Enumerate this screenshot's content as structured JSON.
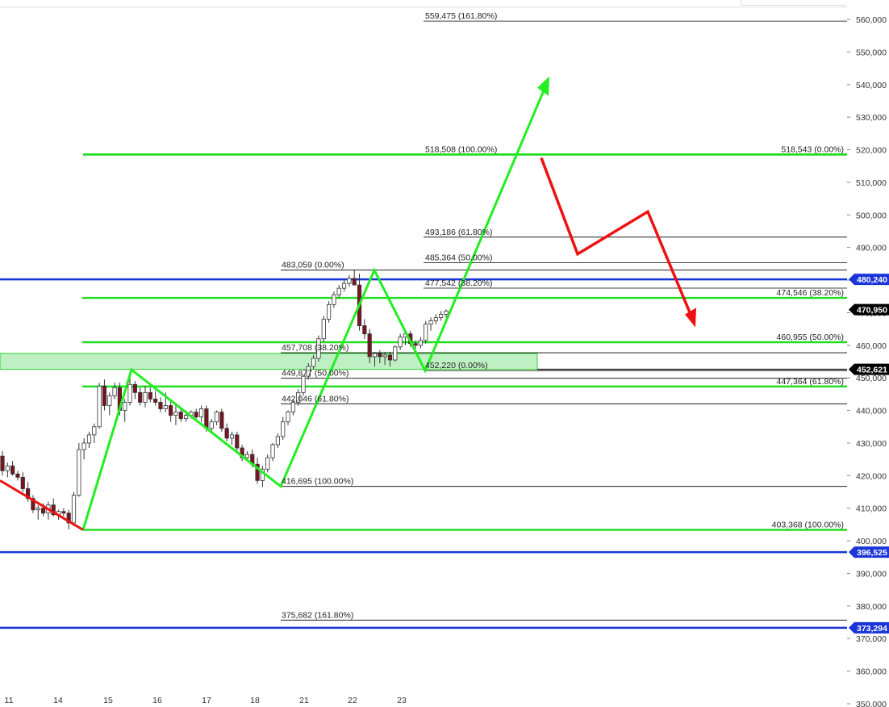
{
  "chart_data": {
    "type": "candlestick",
    "title": "",
    "xlabel": "",
    "ylabel": "",
    "ylim": [
      346000,
      562500
    ],
    "grid": false,
    "x_tick_labels": [
      "11",
      "14",
      "15",
      "16",
      "17",
      "18",
      "21",
      "22",
      "23"
    ],
    "y_tick_labels": [
      "560,000",
      "550,000",
      "540,000",
      "530,000",
      "520,000",
      "510,000",
      "500,000",
      "490,000",
      "480,000",
      "470,000",
      "460,000",
      "450,000",
      "440,000",
      "430,000",
      "420,000",
      "410,000",
      "400,000",
      "390,000",
      "380,000",
      "370,000",
      "360,000",
      "350,000"
    ],
    "y_ticks": [
      560000,
      550000,
      540000,
      530000,
      520000,
      510000,
      500000,
      490000,
      480000,
      470000,
      460000,
      450000,
      440000,
      430000,
      420000,
      410000,
      400000,
      390000,
      380000,
      370000,
      360000,
      350000
    ],
    "price_badges": [
      {
        "label": "480,240",
        "value": 480240,
        "color": "#1a35d8"
      },
      {
        "label": "470,950",
        "value": 470950,
        "color": "#000000"
      },
      {
        "label": "452,621",
        "value": 452621,
        "color": "#000000"
      },
      {
        "label": "396,525",
        "value": 396525,
        "color": "#1a35d8"
      },
      {
        "label": "373,294",
        "value": 373294,
        "color": "#1a35d8"
      }
    ],
    "blue_levels": [
      480240,
      396525,
      373294
    ],
    "support_zone": {
      "top": 457500,
      "bottom": 452621
    },
    "fib_green": {
      "color": "#22dd22",
      "levels": [
        {
          "value": 518508,
          "label": "518,508 (100.00%)",
          "side": "left"
        },
        {
          "value": 518543,
          "label": "518,543 (0.00%)",
          "side": "right"
        },
        {
          "value": 474546,
          "label": "474,546 (38.20%)",
          "side": "right"
        },
        {
          "value": 460955,
          "label": "460,955 (50.00%)",
          "side": "right"
        },
        {
          "value": 447364,
          "label": "447,364 (61.80%)",
          "side": "right"
        },
        {
          "value": 403368,
          "label": "403,368 (100.00%)",
          "side": "right"
        }
      ]
    },
    "fib_black_a": {
      "color": "#000000",
      "levels": [
        {
          "value": 483059,
          "label": "483,059 (0.00%)"
        },
        {
          "value": 457708,
          "label": "457,708 (38.20%)"
        },
        {
          "value": 449877,
          "label": "449,877 (50.00%)"
        },
        {
          "value": 442046,
          "label": "442,046 (61.80%)"
        },
        {
          "value": 416695,
          "label": "416,695 (100.00%)"
        },
        {
          "value": 375682,
          "label": "375,682 (161.80%)"
        }
      ]
    },
    "fib_black_b": {
      "color": "#000000",
      "levels": [
        {
          "value": 559475,
          "label": "559,475 (161.80%)"
        },
        {
          "value": 493186,
          "label": "493,186 (61.80%)"
        },
        {
          "value": 485364,
          "label": "485,364 (50.00%)"
        },
        {
          "value": 477542,
          "label": "477,542 (38.20%)"
        },
        {
          "value": 452220,
          "label": "452,220 (0.00%)"
        }
      ]
    },
    "candles": [
      [
        426000,
        427500,
        420000,
        421500
      ],
      [
        421500,
        424000,
        419500,
        423000
      ],
      [
        423000,
        424500,
        420000,
        420500
      ],
      [
        420500,
        421500,
        418500,
        419500
      ],
      [
        419500,
        421000,
        415000,
        416000
      ],
      [
        416000,
        418000,
        412000,
        413000
      ],
      [
        413000,
        414000,
        408500,
        409500
      ],
      [
        409500,
        411000,
        406500,
        410000
      ],
      [
        410000,
        411500,
        407500,
        408500
      ],
      [
        408500,
        412000,
        406500,
        411000
      ],
      [
        411000,
        413000,
        407500,
        408000
      ],
      [
        408000,
        409500,
        406500,
        409000
      ],
      [
        409000,
        410000,
        407500,
        408500
      ],
      [
        408500,
        409500,
        403500,
        405500
      ],
      [
        405500,
        415000,
        404500,
        414000
      ],
      [
        414000,
        430000,
        413500,
        428000
      ],
      [
        428000,
        431500,
        425000,
        430000
      ],
      [
        430000,
        433500,
        428500,
        432500
      ],
      [
        432500,
        436000,
        430000,
        435000
      ],
      [
        435000,
        448500,
        434500,
        447500
      ],
      [
        447500,
        449500,
        440000,
        441500
      ],
      [
        441500,
        445500,
        438500,
        444500
      ],
      [
        444500,
        448500,
        443500,
        447000
      ],
      [
        447000,
        448500,
        438500,
        440000
      ],
      [
        440000,
        443500,
        436500,
        442500
      ],
      [
        442500,
        450000,
        441500,
        448000
      ],
      [
        448000,
        449000,
        443500,
        445500
      ],
      [
        445500,
        447000,
        441500,
        442500
      ],
      [
        442500,
        447500,
        441000,
        445500
      ],
      [
        445500,
        447000,
        442500,
        443500
      ],
      [
        443500,
        446000,
        441500,
        442500
      ],
      [
        442500,
        444000,
        439500,
        440500
      ],
      [
        440500,
        445500,
        439500,
        441500
      ],
      [
        441500,
        443000,
        436500,
        438500
      ],
      [
        438500,
        441500,
        435500,
        439500
      ],
      [
        439500,
        440500,
        436500,
        437500
      ],
      [
        437500,
        440000,
        436500,
        438500
      ],
      [
        438500,
        440000,
        437500,
        439500
      ],
      [
        439500,
        440500,
        437500,
        438000
      ],
      [
        438000,
        441500,
        436500,
        440500
      ],
      [
        440500,
        441500,
        433500,
        434500
      ],
      [
        434500,
        437500,
        433500,
        436500
      ],
      [
        436500,
        440000,
        435500,
        439500
      ],
      [
        439500,
        440500,
        433500,
        434500
      ],
      [
        434500,
        436000,
        430500,
        431500
      ],
      [
        431500,
        433500,
        429500,
        432500
      ],
      [
        432500,
        433500,
        427500,
        428500
      ],
      [
        428500,
        429500,
        424500,
        425500
      ],
      [
        425500,
        427500,
        424500,
        426500
      ],
      [
        426500,
        428000,
        422500,
        423500
      ],
      [
        423500,
        425500,
        417500,
        418500
      ],
      [
        418500,
        423000,
        416500,
        422000
      ],
      [
        422000,
        426500,
        421000,
        425500
      ],
      [
        425500,
        430000,
        424500,
        429500
      ],
      [
        429500,
        433000,
        428500,
        432000
      ],
      [
        432000,
        438000,
        431000,
        436500
      ],
      [
        436500,
        440000,
        435500,
        439500
      ],
      [
        439500,
        443500,
        438500,
        442500
      ],
      [
        442500,
        446500,
        441500,
        445500
      ],
      [
        445500,
        451000,
        444500,
        450500
      ],
      [
        450500,
        454500,
        449500,
        453500
      ],
      [
        453500,
        457000,
        452500,
        456000
      ],
      [
        456000,
        463000,
        455000,
        462000
      ],
      [
        462000,
        469000,
        461000,
        468000
      ],
      [
        468000,
        473500,
        467000,
        472500
      ],
      [
        472500,
        476500,
        471500,
        475500
      ],
      [
        475500,
        478500,
        474500,
        477500
      ],
      [
        477500,
        480000,
        476500,
        479000
      ],
      [
        479000,
        481500,
        478000,
        480500
      ],
      [
        480500,
        483000,
        479500,
        478500
      ],
      [
        478500,
        482000,
        464500,
        466000
      ],
      [
        466000,
        468000,
        462000,
        463500
      ],
      [
        463500,
        465000,
        454500,
        456500
      ],
      [
        456500,
        458000,
        453500,
        457500
      ],
      [
        457500,
        458500,
        454500,
        456500
      ],
      [
        456500,
        458000,
        454000,
        457000
      ],
      [
        457000,
        458000,
        453500,
        455500
      ],
      [
        455500,
        460000,
        455000,
        459500
      ],
      [
        459500,
        463500,
        458500,
        462500
      ],
      [
        462500,
        464500,
        460000,
        463500
      ],
      [
        463500,
        464500,
        459500,
        460500
      ],
      [
        460500,
        461500,
        459000,
        460000
      ],
      [
        460000,
        462500,
        459000,
        461500
      ],
      [
        461500,
        467500,
        460500,
        466500
      ],
      [
        466500,
        468500,
        464500,
        467500
      ],
      [
        467500,
        469500,
        466500,
        468500
      ],
      [
        468500,
        470500,
        467500,
        469500
      ],
      [
        469500,
        471000,
        468500,
        470500
      ]
    ]
  }
}
